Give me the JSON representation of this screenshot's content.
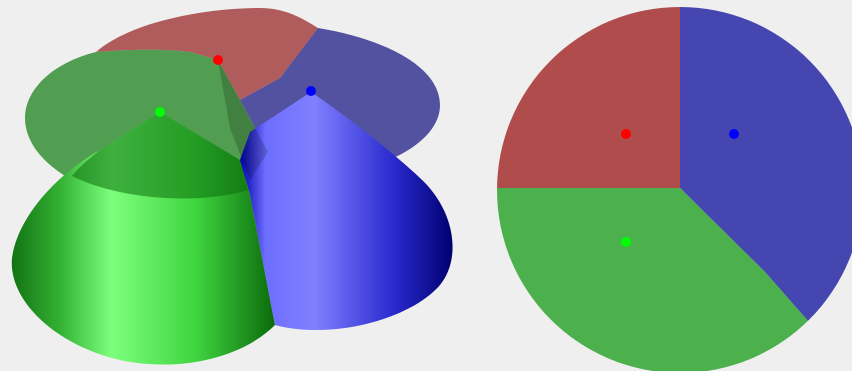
{
  "background_color": "#efefef",
  "cones_3d": {
    "sites": [
      {
        "color_name": "red",
        "dot_color": "#ff0000",
        "face_color": "#a23c3c"
      },
      {
        "color_name": "green",
        "dot_color": "#00ff00",
        "face_color": "#2e8b2e"
      },
      {
        "color_name": "blue",
        "dot_color": "#0000ff",
        "face_color": "#303090"
      }
    ],
    "cone_fills": {
      "green": [
        "#137313",
        "#33b033",
        "#7cff7c",
        "#3fd43f",
        "#0b6a0b"
      ],
      "blue": [
        "#0000aa",
        "#6d6dff",
        "#8080ff",
        "#2a2ad0",
        "#000070"
      ]
    }
  },
  "voronoi_2d": {
    "regions": [
      {
        "color_name": "red",
        "fill": "#b04c4c",
        "dot_color": "#ff0000"
      },
      {
        "color_name": "blue",
        "fill": "#4646b0",
        "dot_color": "#0000ff"
      },
      {
        "color_name": "green",
        "fill": "#4cb04c",
        "dot_color": "#00ff00"
      }
    ]
  }
}
